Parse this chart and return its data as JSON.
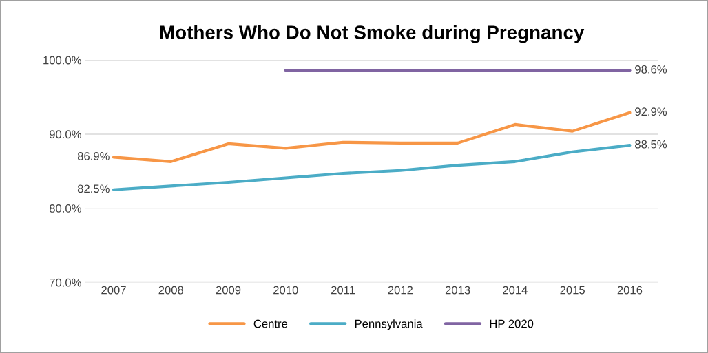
{
  "chart_data": {
    "type": "line",
    "title": "Mothers Who Do Not Smoke during Pregnancy",
    "categories": [
      "2007",
      "2008",
      "2009",
      "2010",
      "2011",
      "2012",
      "2013",
      "2014",
      "2015",
      "2016"
    ],
    "series": [
      {
        "name": "Centre",
        "color": "#f79646",
        "values": [
          86.9,
          86.3,
          88.7,
          88.1,
          88.9,
          88.8,
          88.8,
          91.3,
          90.4,
          92.9
        ],
        "value_labels": [
          "86.9%",
          null,
          null,
          null,
          null,
          null,
          null,
          null,
          null,
          "92.9%"
        ]
      },
      {
        "name": "Pennsylvania",
        "color": "#4bacc6",
        "values": [
          82.5,
          83.0,
          83.5,
          84.1,
          84.7,
          85.1,
          85.8,
          86.3,
          87.6,
          88.5
        ],
        "value_labels": [
          "82.5%",
          null,
          null,
          null,
          null,
          null,
          null,
          null,
          null,
          "88.5%"
        ]
      },
      {
        "name": "HP 2020",
        "color": "#8064a2",
        "values": [
          null,
          null,
          null,
          98.6,
          98.6,
          98.6,
          98.6,
          98.6,
          98.6,
          98.6
        ],
        "value_labels": [
          null,
          null,
          null,
          null,
          null,
          null,
          null,
          null,
          null,
          "98.6%"
        ]
      }
    ],
    "ylim": [
      70,
      100
    ],
    "yticks": [
      {
        "value": 70,
        "label": "70.0%"
      },
      {
        "value": 80,
        "label": "80.0%"
      },
      {
        "value": 90,
        "label": "90.0%"
      },
      {
        "value": 100,
        "label": "100.0%"
      }
    ],
    "grid": "y",
    "legend": "bottom",
    "marker": "none",
    "line_style": "solid"
  }
}
